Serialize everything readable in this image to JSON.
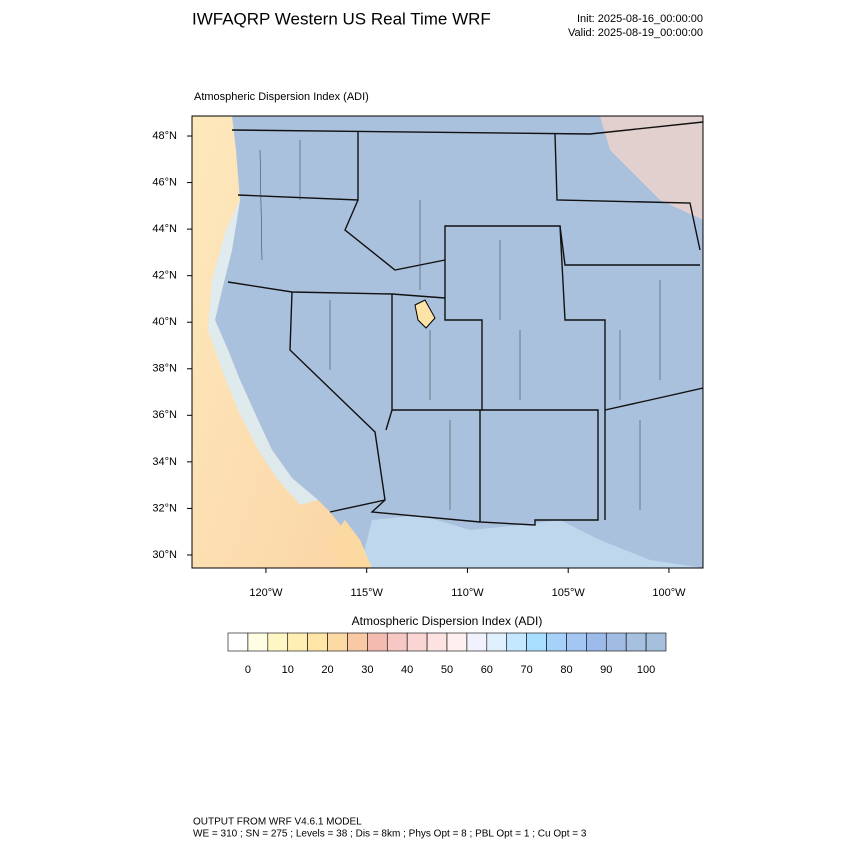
{
  "header": {
    "title": "IWFAQRP Western US Real Time WRF",
    "init": "Init: 2025-08-16_00:00:00",
    "valid": "Valid: 2025-08-19_00:00:00"
  },
  "map": {
    "subtitle": "Atmospheric Dispersion Index   (ADI)",
    "lonlim": [
      -123.67,
      -98.31
    ],
    "latlim": [
      29.44,
      48.86
    ],
    "latticks": [
      {
        "value": 30,
        "label": "30°N"
      },
      {
        "value": 32,
        "label": "32°N"
      },
      {
        "value": 34,
        "label": "34°N"
      },
      {
        "value": 36,
        "label": "36°N"
      },
      {
        "value": 38,
        "label": "38°N"
      },
      {
        "value": 40,
        "label": "40°N"
      },
      {
        "value": 42,
        "label": "42°N"
      },
      {
        "value": 44,
        "label": "44°N"
      },
      {
        "value": 46,
        "label": "46°N"
      },
      {
        "value": 48,
        "label": "48°N"
      }
    ],
    "lonticks": [
      {
        "value": -120,
        "label": "120°W"
      },
      {
        "value": -115,
        "label": "115°W"
      },
      {
        "value": -110,
        "label": "110°W"
      },
      {
        "value": -105,
        "label": "105°W"
      },
      {
        "value": -100,
        "label": "100°W"
      }
    ]
  },
  "colorbar": {
    "title": "Atmospheric Dispersion Index  (ADI)",
    "lim": [
      -5,
      105
    ],
    "colors": [
      "#ffffff",
      "#fffde3",
      "#fff6c6",
      "#ffefb4",
      "#ffe6a6",
      "#fdd9a4",
      "#f8c9a4",
      "#f4bcb0",
      "#f6c8c4",
      "#f9d6d4",
      "#fce3e2",
      "#fdf0ef",
      "#f2f2ff",
      "#e0f0ff",
      "#c4e8ff",
      "#a8deff",
      "#a6d2fa",
      "#a4c6f2",
      "#9cbbea",
      "#a2bbe2",
      "#a8c0e0",
      "#a6bfdc"
    ],
    "ticks": [
      0,
      10,
      20,
      30,
      40,
      50,
      60,
      70,
      80,
      90,
      100
    ]
  },
  "footer": {
    "line1": "OUTPUT FROM WRF V4.6.1 MODEL",
    "line2": "WE = 310 ; SN = 275 ; Levels = 38 ; Dis = 8km ; Phys Opt = 8 ; PBL Opt = 1 ; Cu Opt = 3"
  }
}
